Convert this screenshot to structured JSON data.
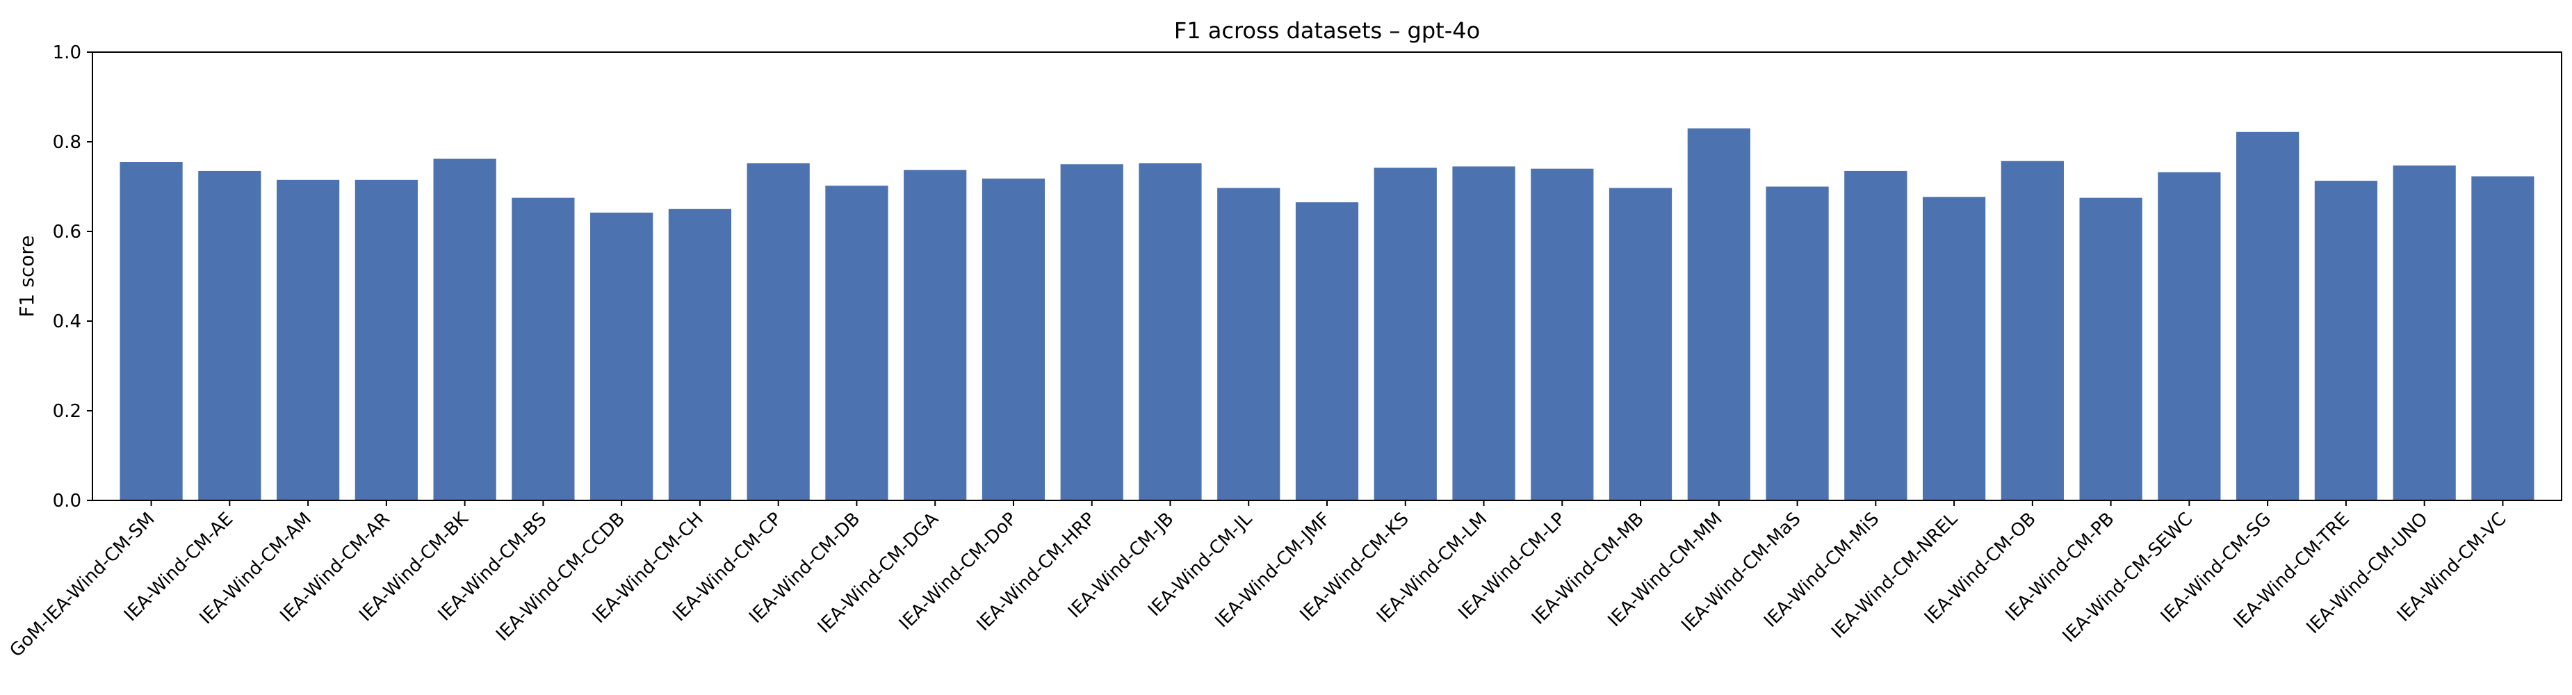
{
  "chart_data": {
    "type": "bar",
    "title": "F1 across datasets – gpt-4o",
    "xlabel": "",
    "ylabel": "F1 score",
    "ylim": [
      0,
      1.0
    ],
    "yticks": [
      "0.0",
      "0.2",
      "0.4",
      "0.6",
      "0.8",
      "1.0"
    ],
    "bar_color": "#4c72b0",
    "categories": [
      "GoM-IEA-Wind-CM-SM",
      "IEA-Wind-CM-AE",
      "IEA-Wind-CM-AM",
      "IEA-Wind-CM-AR",
      "IEA-Wind-CM-BK",
      "IEA-Wind-CM-BS",
      "IEA-Wind-CM-CCDB",
      "IEA-Wind-CM-CH",
      "IEA-Wind-CM-CP",
      "IEA-Wind-CM-DB",
      "IEA-Wind-CM-DGA",
      "IEA-Wind-CM-DoP",
      "IEA-Wind-CM-HRP",
      "IEA-Wind-CM-JB",
      "IEA-Wind-CM-JL",
      "IEA-Wind-CM-JMF",
      "IEA-Wind-CM-KS",
      "IEA-Wind-CM-LM",
      "IEA-Wind-CM-LP",
      "IEA-Wind-CM-MB",
      "IEA-Wind-CM-MM",
      "IEA-Wind-CM-MaS",
      "IEA-Wind-CM-MiS",
      "IEA-Wind-CM-NREL",
      "IEA-Wind-CM-OB",
      "IEA-Wind-CM-PB",
      "IEA-Wind-CM-SEWC",
      "IEA-Wind-CM-SG",
      "IEA-Wind-CM-TRE",
      "IEA-Wind-CM-UNO",
      "IEA-Wind-CM-VC"
    ],
    "values": [
      0.755,
      0.735,
      0.715,
      0.715,
      0.762,
      0.675,
      0.642,
      0.65,
      0.752,
      0.702,
      0.737,
      0.718,
      0.75,
      0.752,
      0.697,
      0.665,
      0.742,
      0.745,
      0.74,
      0.697,
      0.83,
      0.7,
      0.735,
      0.677,
      0.757,
      0.675,
      0.732,
      0.822,
      0.713,
      0.747,
      0.723
    ],
    "grid": false,
    "legend": "none"
  }
}
